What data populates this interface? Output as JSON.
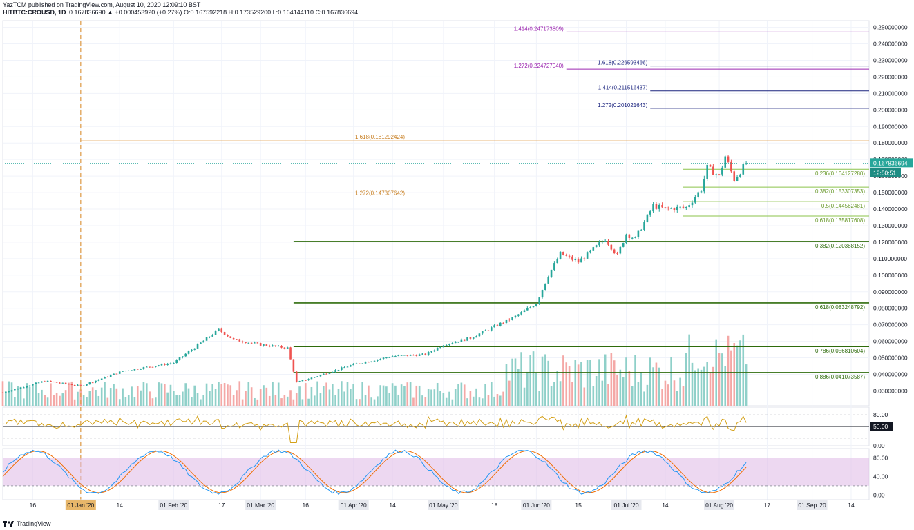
{
  "header": {
    "line1": "YazTCM published on TradingView.com, August 10, 2020 12:09:10 BST",
    "line2_symbol": "HITBTC:CROUSD, 1D",
    "line2_values": "0.167836690  ▲ +0.000453920 (+0.27%)  O:0.167592218  H:0.173529200  L:0.164144110  C:0.167836694"
  },
  "footer": {
    "brand": "TradingView",
    "logo_icon": "tradingview-logo-icon"
  },
  "colors": {
    "up": "#26a69a",
    "down": "#ef5350",
    "vol_up": "#8fd0c9",
    "vol_down": "#f4a8a6",
    "dark_green": "#2e6b0c",
    "light_green": "#8bc34a",
    "orange": "#e0a050",
    "purple": "#9c27b0",
    "navy": "#1a237e",
    "rsi": "#d4a017",
    "stoch_k": "#2196f3",
    "stoch_d": "#ef6c00",
    "stoch_band": "#e1bee7",
    "axis_text": "#131722",
    "grid": "#f0f3fa"
  },
  "chart_data": {
    "type": "candlestick",
    "symbol": "HITBTC:CROUSD",
    "interval": "1D",
    "price_axis": {
      "ylim": [
        0.021,
        0.254
      ],
      "ticks": [
        "0.250000000",
        "0.240000000",
        "0.230000000",
        "0.220000000",
        "0.210000000",
        "0.200000000",
        "0.190000000",
        "0.180000000",
        "0.170000000",
        "0.160000000",
        "0.150000000",
        "0.140000000",
        "0.130000000",
        "0.120000000",
        "0.110000000",
        "0.100000000",
        "0.090000000",
        "0.080000000",
        "0.070000000",
        "0.060000000",
        "0.050000000",
        "0.040000000",
        "0.030000000"
      ],
      "tick_values": [
        0.25,
        0.24,
        0.23,
        0.22,
        0.21,
        0.2,
        0.19,
        0.18,
        0.17,
        0.16,
        0.15,
        0.14,
        0.13,
        0.12,
        0.11,
        0.1,
        0.09,
        0.08,
        0.07,
        0.06,
        0.05,
        0.04,
        0.03
      ]
    },
    "last_price_label": "0.167836694",
    "countdown_label": "12:50:51",
    "time_axis": {
      "x_range": [
        "2019-12-06",
        "2020-09-20"
      ],
      "ticks": [
        {
          "date": "2019-12-16",
          "label": "16"
        },
        {
          "date": "2020-01-01",
          "label": "01 Jan '20"
        },
        {
          "date": "2020-01-14",
          "label": "14"
        },
        {
          "date": "2020-02-01",
          "label": "01 Feb '20"
        },
        {
          "date": "2020-02-17",
          "label": "17"
        },
        {
          "date": "2020-03-01",
          "label": "01 Mar '20"
        },
        {
          "date": "2020-03-16",
          "label": "16"
        },
        {
          "date": "2020-04-01",
          "label": "01 Apr '20"
        },
        {
          "date": "2020-04-14",
          "label": "14"
        },
        {
          "date": "2020-05-01",
          "label": "01 May '20"
        },
        {
          "date": "2020-05-18",
          "label": "18"
        },
        {
          "date": "2020-06-01",
          "label": "01 Jun '20"
        },
        {
          "date": "2020-06-15",
          "label": "15"
        },
        {
          "date": "2020-07-01",
          "label": "01 Jul '20"
        },
        {
          "date": "2020-07-14",
          "label": "14"
        },
        {
          "date": "2020-08-01",
          "label": "01 Aug '20"
        },
        {
          "date": "2020-08-17",
          "label": "17"
        },
        {
          "date": "2020-09-01",
          "label": "01 Sep '20"
        },
        {
          "date": "2020-09-14",
          "label": "14"
        }
      ]
    },
    "highlighted_date_label": "01 Jan '20",
    "vertical_marker_date": "2020-01-01",
    "price_anchors": [
      {
        "date": "2019-12-06",
        "price": 0.029
      },
      {
        "date": "2019-12-20",
        "price": 0.036
      },
      {
        "date": "2020-01-01",
        "price": 0.033
      },
      {
        "date": "2020-01-15",
        "price": 0.042
      },
      {
        "date": "2020-02-01",
        "price": 0.047
      },
      {
        "date": "2020-02-16",
        "price": 0.067
      },
      {
        "date": "2020-02-21",
        "price": 0.061
      },
      {
        "date": "2020-03-01",
        "price": 0.058
      },
      {
        "date": "2020-03-10",
        "price": 0.056
      },
      {
        "date": "2020-03-13",
        "price": 0.035
      },
      {
        "date": "2020-03-20",
        "price": 0.039
      },
      {
        "date": "2020-04-01",
        "price": 0.046
      },
      {
        "date": "2020-04-14",
        "price": 0.051
      },
      {
        "date": "2020-04-25",
        "price": 0.052
      },
      {
        "date": "2020-05-01",
        "price": 0.058
      },
      {
        "date": "2020-05-10",
        "price": 0.062
      },
      {
        "date": "2020-05-25",
        "price": 0.075
      },
      {
        "date": "2020-06-01",
        "price": 0.083
      },
      {
        "date": "2020-06-05",
        "price": 0.1
      },
      {
        "date": "2020-06-09",
        "price": 0.113
      },
      {
        "date": "2020-06-15",
        "price": 0.108
      },
      {
        "date": "2020-06-24",
        "price": 0.122
      },
      {
        "date": "2020-06-28",
        "price": 0.112
      },
      {
        "date": "2020-07-01",
        "price": 0.125
      },
      {
        "date": "2020-07-04",
        "price": 0.122
      },
      {
        "date": "2020-07-10",
        "price": 0.142
      },
      {
        "date": "2020-07-14",
        "price": 0.14
      },
      {
        "date": "2020-07-21",
        "price": 0.141
      },
      {
        "date": "2020-07-26",
        "price": 0.152
      },
      {
        "date": "2020-07-28",
        "price": 0.165
      },
      {
        "date": "2020-08-01",
        "price": 0.16
      },
      {
        "date": "2020-08-03",
        "price": 0.172
      },
      {
        "date": "2020-08-06",
        "price": 0.158
      },
      {
        "date": "2020-08-10",
        "price": 0.1678
      }
    ],
    "fib_levels": [
      {
        "label": "0.236(0.164127280)",
        "value": 0.16412728,
        "color": "light_green",
        "from": "2020-07-20",
        "to": "2020-09-20",
        "label_side": "right"
      },
      {
        "label": "0.382(0.153307353)",
        "value": 0.153307353,
        "color": "light_green",
        "from": "2020-07-20",
        "to": "2020-09-20",
        "label_side": "right"
      },
      {
        "label": "0.5(0.144562481)",
        "value": 0.144562481,
        "color": "light_green",
        "from": "2020-07-20",
        "to": "2020-09-20",
        "label_side": "right"
      },
      {
        "label": "0.618(0.135817608)",
        "value": 0.135817608,
        "color": "light_green",
        "from": "2020-07-20",
        "to": "2020-09-20",
        "label_side": "right"
      },
      {
        "label": "0.382(0.120388152)",
        "value": 0.120388152,
        "color": "dark_green",
        "from": "2020-03-12",
        "to": "2020-09-20",
        "label_side": "right",
        "bold": true
      },
      {
        "label": "0.618(0.083248792)",
        "value": 0.083248792,
        "color": "dark_green",
        "from": "2020-03-12",
        "to": "2020-09-20",
        "label_side": "right",
        "bold": true
      },
      {
        "label": "0.786(0.056810604)",
        "value": 0.056810604,
        "color": "dark_green",
        "from": "2020-03-12",
        "to": "2020-09-20",
        "label_side": "right",
        "bold": true
      },
      {
        "label": "0.886(0.041073587)",
        "value": 0.041073587,
        "color": "dark_green",
        "from": "2020-03-12",
        "to": "2020-09-20",
        "label_side": "right",
        "bold": true
      },
      {
        "label": "1.618(0.181292424)",
        "value": 0.181292424,
        "color": "orange",
        "from": "2020-01-01",
        "to": "2020-09-20",
        "label_side": "left_of_line"
      },
      {
        "label": "1.272(0.147307642)",
        "value": 0.147307642,
        "color": "orange",
        "from": "2020-01-01",
        "to": "2020-09-20",
        "label_side": "left_of_line"
      },
      {
        "label": "1.414(0.247173809)",
        "value": 0.247173809,
        "color": "purple",
        "from": "2020-06-11",
        "to": "2020-09-20",
        "label_side": "left"
      },
      {
        "label": "1.272(0.224727040)",
        "value": 0.22472704,
        "color": "purple",
        "from": "2020-06-11",
        "to": "2020-09-20",
        "label_side": "left"
      },
      {
        "label": "1.618(0.226593466)",
        "value": 0.226593466,
        "color": "navy",
        "from": "2020-07-09",
        "to": "2020-09-20",
        "label_side": "left"
      },
      {
        "label": "1.414(0.211516437)",
        "value": 0.211516437,
        "color": "navy",
        "from": "2020-07-09",
        "to": "2020-09-20",
        "label_side": "left"
      },
      {
        "label": "1.272(0.201021643)",
        "value": 0.201021643,
        "color": "navy",
        "from": "2020-07-09",
        "to": "2020-09-20",
        "label_side": "left"
      }
    ],
    "rsi": {
      "ticks": [
        "80.00",
        "50.00",
        "0.00"
      ],
      "tick_values": [
        80,
        50,
        0
      ],
      "current_label": "50.00",
      "ylim": [
        0,
        100
      ],
      "upper_band": 80,
      "lower_band": 20
    },
    "stoch": {
      "ticks": [
        "80.00",
        "40.00",
        "0.00"
      ],
      "tick_values": [
        80,
        40,
        0
      ],
      "ylim": [
        -10,
        100
      ],
      "upper_band": 80,
      "lower_band": 20
    }
  }
}
